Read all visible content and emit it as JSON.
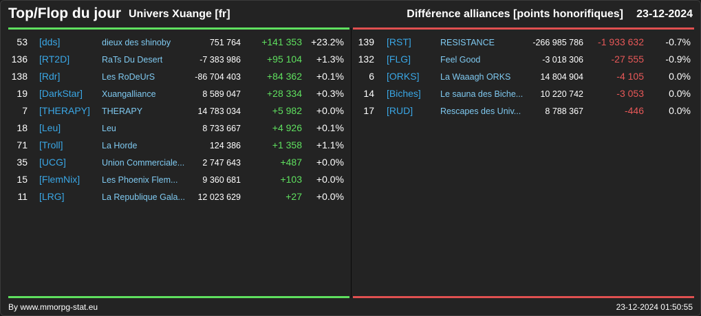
{
  "header": {
    "title": "Top/Flop du jour",
    "universe": "Univers Xuange [fr]",
    "subtitle": "Différence alliances [points honorifiques]",
    "date": "23-12-2024"
  },
  "colors": {
    "top_accent": "#5fe05f",
    "flop_accent": "#e05050",
    "tag": "#3aa7e6",
    "name": "#7fc9f0",
    "background": "#232323"
  },
  "top": [
    {
      "rank": "53",
      "tag": "[dds]",
      "name": "dieux des shinoby",
      "points": "751 764",
      "diff": "+141 353",
      "pct": "+23.2%"
    },
    {
      "rank": "136",
      "tag": "[RT2D]",
      "name": "RaTs Du Desert",
      "points": "-7 383 986",
      "diff": "+95 104",
      "pct": "+1.3%"
    },
    {
      "rank": "138",
      "tag": "[Rdr]",
      "name": "Les RoDeUrS",
      "points": "-86 704 403",
      "diff": "+84 362",
      "pct": "+0.1%"
    },
    {
      "rank": "19",
      "tag": "[DarkStar]",
      "name": "Xuangalliance",
      "points": "8 589 047",
      "diff": "+28 334",
      "pct": "+0.3%"
    },
    {
      "rank": "7",
      "tag": "[THERAPY]",
      "name": "THERAPY",
      "points": "14 783 034",
      "diff": "+5 982",
      "pct": "+0.0%"
    },
    {
      "rank": "18",
      "tag": "[Leu]",
      "name": "Leu",
      "points": "8 733 667",
      "diff": "+4 926",
      "pct": "+0.1%"
    },
    {
      "rank": "71",
      "tag": "[Troll]",
      "name": "La Horde",
      "points": "124 386",
      "diff": "+1 358",
      "pct": "+1.1%"
    },
    {
      "rank": "35",
      "tag": "[UCG]",
      "name": "Union Commerciale...",
      "points": "2 747 643",
      "diff": "+487",
      "pct": "+0.0%"
    },
    {
      "rank": "15",
      "tag": "[FlemNix]",
      "name": "Les Phoenix Flem...",
      "points": "9 360 681",
      "diff": "+103",
      "pct": "+0.0%"
    },
    {
      "rank": "11",
      "tag": "[LRG]",
      "name": "La Republique Gala...",
      "points": "12 023 629",
      "diff": "+27",
      "pct": "+0.0%"
    }
  ],
  "flop": [
    {
      "rank": "139",
      "tag": "[RST]",
      "name": "RESISTANCE",
      "points": "-266 985 786",
      "diff": "-1 933 632",
      "pct": "-0.7%"
    },
    {
      "rank": "132",
      "tag": "[FLG]",
      "name": "Feel Good",
      "points": "-3 018 306",
      "diff": "-27 555",
      "pct": "-0.9%"
    },
    {
      "rank": "6",
      "tag": "[ORKS]",
      "name": "La Waaagh ORKS",
      "points": "14 804 904",
      "diff": "-4 105",
      "pct": "0.0%"
    },
    {
      "rank": "14",
      "tag": "[Biches]",
      "name": "Le sauna des Biche...",
      "points": "10 220 742",
      "diff": "-3 053",
      "pct": "0.0%"
    },
    {
      "rank": "17",
      "tag": "[RUD]",
      "name": "Rescapes des Univ...",
      "points": "8 788 367",
      "diff": "-446",
      "pct": "0.0%"
    }
  ],
  "footer": {
    "credit": "By www.mmorpg-stat.eu",
    "timestamp": "23-12-2024 01:50:55"
  }
}
